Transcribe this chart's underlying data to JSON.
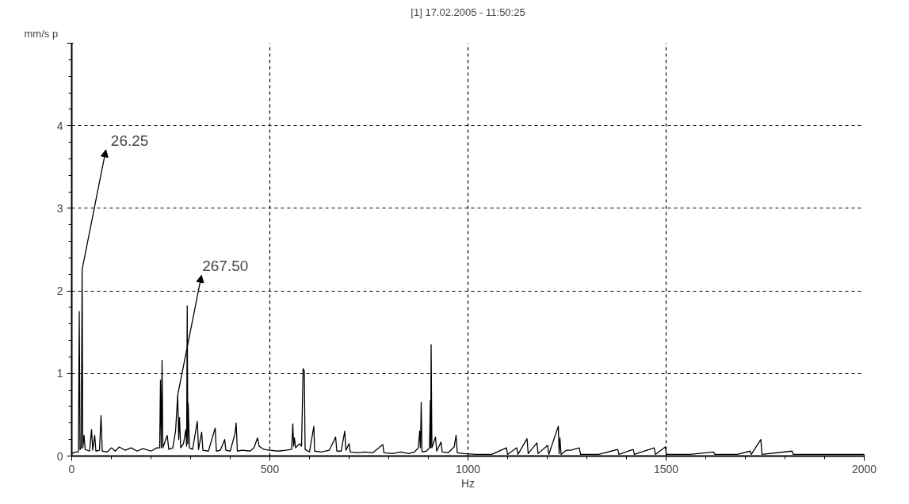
{
  "chart_data": {
    "type": "line",
    "title": "[1] 17.02.2005 - 11:50:25",
    "xlabel": "Hz",
    "ylabel": "mm/s p",
    "xlim": [
      0,
      2000
    ],
    "ylim": [
      0,
      5
    ],
    "xticks": [
      0,
      500,
      1000,
      1500,
      2000
    ],
    "yticks": [
      0,
      1,
      2,
      3,
      4,
      {
        "value": 5,
        "label": null
      }
    ],
    "grid": true,
    "marker": "none",
    "line_style": "solid",
    "annotations": [
      {
        "text": "26.25",
        "x": 26.25,
        "y": 2.26
      },
      {
        "text": "267.50",
        "x": 267.5,
        "y": 0.74
      }
    ],
    "series": [
      {
        "color": "#000000",
        "x": [
          0,
          10,
          17,
          19,
          21,
          24,
          26.25,
          28,
          31,
          34,
          45,
          50,
          53,
          58,
          61,
          70,
          74,
          77,
          90,
          100,
          110,
          120,
          135,
          150,
          165,
          180,
          200,
          215,
          222,
          224,
          226,
          228,
          230,
          241,
          245,
          255,
          262,
          267.5,
          270,
          272,
          275,
          282,
          288,
          290,
          291.5,
          293,
          294,
          297,
          305,
          317,
          320,
          328,
          331,
          345,
          362,
          365,
          375,
          386,
          389,
          400,
          412,
          415,
          418,
          430,
          450,
          460,
          469,
          473,
          485,
          500,
          520,
          540,
          555,
          558,
          560,
          562,
          565,
          575,
          580,
          584,
          587,
          589,
          600,
          611,
          613,
          630,
          650,
          666,
          669,
          680,
          689,
          692,
          700,
          703,
          720,
          740,
          760,
          785,
          788,
          810,
          830,
          850,
          865,
          875,
          878,
          880,
          882,
          884,
          895,
          903,
          905,
          906,
          907,
          909,
          918,
          921,
          932,
          935,
          950,
          965,
          970,
          973,
          990,
          1020,
          1060,
          1097,
          1100,
          1123,
          1126,
          1149,
          1152,
          1174,
          1177,
          1201,
          1204,
          1228,
          1230,
          1232,
          1235,
          1248,
          1260,
          1281,
          1284,
          1330,
          1378,
          1381,
          1417,
          1420,
          1470,
          1473,
          1498,
          1501,
          1560,
          1620,
          1623,
          1680,
          1712,
          1715,
          1739,
          1742,
          1818,
          1821,
          1900,
          1960,
          2000
        ],
        "values": [
          0.03,
          0.05,
          0.05,
          1.75,
          0.08,
          0.1,
          2.26,
          0.1,
          0.25,
          0.08,
          0.06,
          0.32,
          0.07,
          0.25,
          0.06,
          0.07,
          0.49,
          0.06,
          0.05,
          0.1,
          0.06,
          0.11,
          0.07,
          0.1,
          0.06,
          0.09,
          0.06,
          0.1,
          0.1,
          0.92,
          0.1,
          1.16,
          0.1,
          0.25,
          0.08,
          0.1,
          0.3,
          0.74,
          0.2,
          0.47,
          0.1,
          0.15,
          0.32,
          0.12,
          1.82,
          0.15,
          0.64,
          0.1,
          0.08,
          0.42,
          0.08,
          0.29,
          0.07,
          0.06,
          0.34,
          0.06,
          0.07,
          0.2,
          0.07,
          0.06,
          0.27,
          0.4,
          0.06,
          0.07,
          0.06,
          0.1,
          0.22,
          0.12,
          0.08,
          0.07,
          0.06,
          0.07,
          0.08,
          0.39,
          0.12,
          0.22,
          0.1,
          0.15,
          0.12,
          1.06,
          1.03,
          0.08,
          0.05,
          0.36,
          0.06,
          0.05,
          0.07,
          0.23,
          0.06,
          0.06,
          0.3,
          0.07,
          0.15,
          0.05,
          0.04,
          0.05,
          0.04,
          0.14,
          0.04,
          0.03,
          0.05,
          0.03,
          0.05,
          0.1,
          0.3,
          0.1,
          0.65,
          0.05,
          0.06,
          0.1,
          0.67,
          0.1,
          1.35,
          0.1,
          0.23,
          0.06,
          0.17,
          0.05,
          0.04,
          0.11,
          0.25,
          0.04,
          0.03,
          0.02,
          0.02,
          0.1,
          0.02,
          0.1,
          0.02,
          0.21,
          0.03,
          0.16,
          0.03,
          0.13,
          0.02,
          0.36,
          0.03,
          0.22,
          0.02,
          0.07,
          0.07,
          0.1,
          0.02,
          0.02,
          0.08,
          0.02,
          0.08,
          0.02,
          0.1,
          0.02,
          0.11,
          0.02,
          0.02,
          0.05,
          0.02,
          0.02,
          0.06,
          0.02,
          0.2,
          0.02,
          0.06,
          0.02,
          0.02,
          0.02,
          0.02
        ]
      }
    ]
  }
}
